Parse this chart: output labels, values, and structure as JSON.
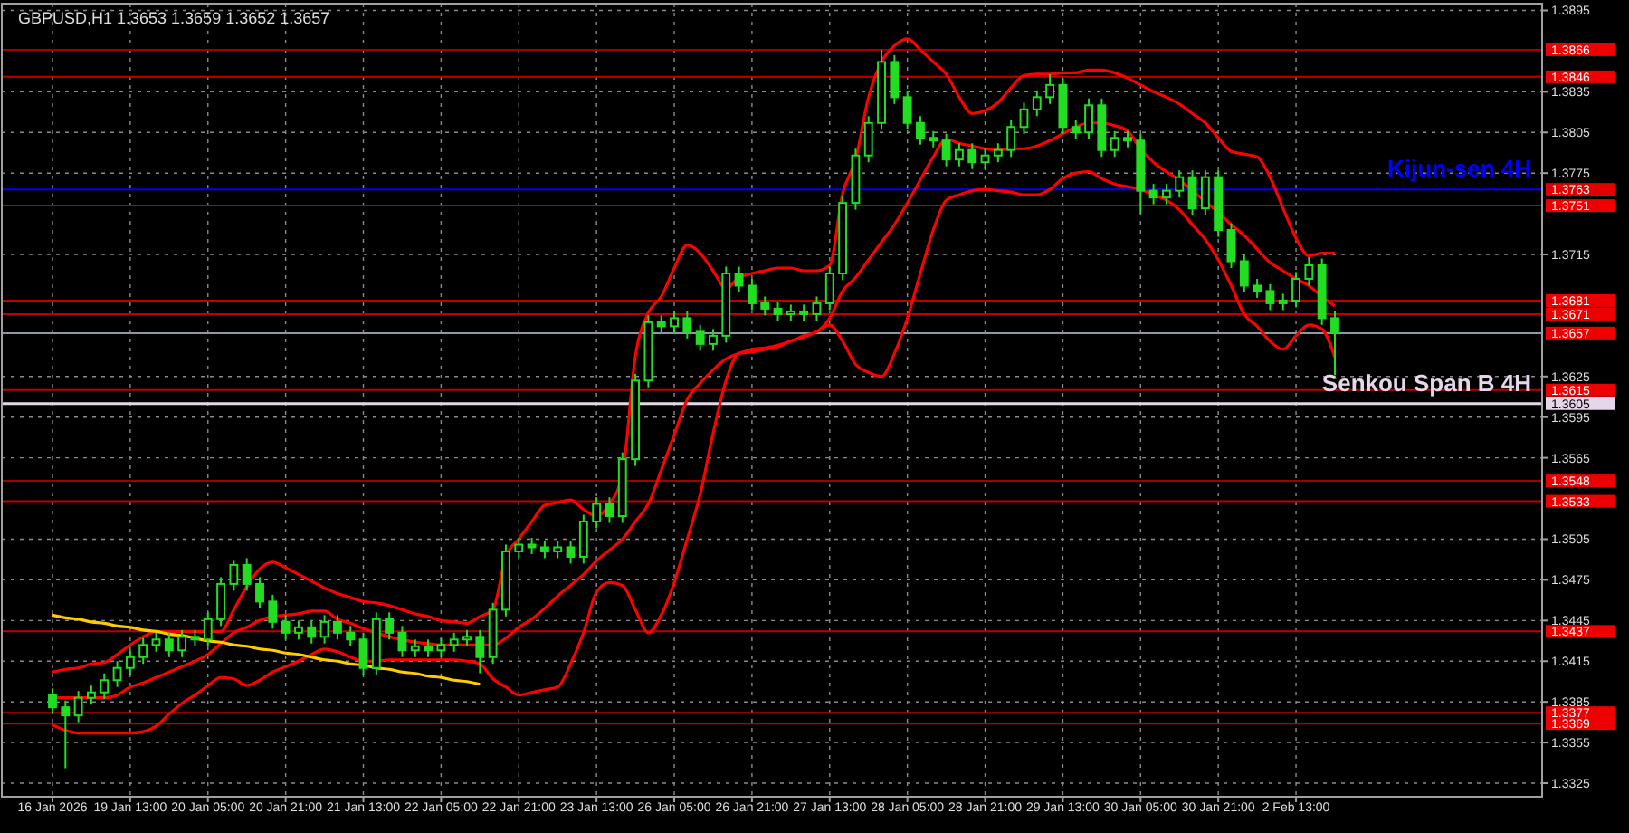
{
  "chart_data": {
    "type": "candlestick",
    "title": "GBPUSD,H1  1.3653 1.3659 1.3652 1.3657",
    "categories": [
      "16 Jan 2026",
      null,
      null,
      null,
      null,
      null,
      "19 Jan 13:00",
      null,
      null,
      null,
      null,
      null,
      "20 Jan 05:00",
      null,
      null,
      null,
      null,
      null,
      "20 Jan 21:00",
      null,
      null,
      null,
      null,
      null,
      "21 Jan 13:00",
      null,
      null,
      null,
      null,
      null,
      "22 Jan 05:00",
      null,
      null,
      null,
      null,
      null,
      "22 Jan 21:00",
      null,
      null,
      null,
      null,
      null,
      "23 Jan 13:00",
      null,
      null,
      null,
      null,
      null,
      "26 Jan 05:00",
      null,
      null,
      null,
      null,
      null,
      "26 Jan 21:00",
      null,
      null,
      null,
      null,
      null,
      "27 Jan 13:00",
      null,
      null,
      null,
      null,
      null,
      "28 Jan 05:00",
      null,
      null,
      null,
      null,
      null,
      "28 Jan 21:00",
      null,
      null,
      null,
      null,
      null,
      "29 Jan 13:00",
      null,
      null,
      null,
      null,
      null,
      "30 Jan 05:00",
      null,
      null,
      null,
      null,
      null,
      "30 Jan 21:00",
      null,
      null,
      null,
      null,
      null,
      "2 Feb 13:00",
      null,
      null,
      null
    ],
    "series": [
      {
        "type": "candlestick",
        "color": "#22dd22",
        "ohlc": [
          [
            1.339,
            1.3395,
            1.3376,
            1.3381
          ],
          [
            1.3381,
            1.3386,
            1.3336,
            1.3375
          ],
          [
            1.3375,
            1.3393,
            1.337,
            1.3388
          ],
          [
            1.3388,
            1.3397,
            1.3383,
            1.3392
          ],
          [
            1.3392,
            1.3406,
            1.3387,
            1.3401
          ],
          [
            1.3401,
            1.3415,
            1.3396,
            1.341
          ],
          [
            1.341,
            1.3423,
            1.3405,
            1.3418
          ],
          [
            1.3418,
            1.3432,
            1.3413,
            1.3427
          ],
          [
            1.3427,
            1.3436,
            1.3422,
            1.3431
          ],
          [
            1.3431,
            1.3436,
            1.3418,
            1.3423
          ],
          [
            1.3423,
            1.3438,
            1.3418,
            1.3433
          ],
          [
            1.3433,
            1.3438,
            1.3426,
            1.3431
          ],
          [
            1.3431,
            1.3451,
            1.3426,
            1.3446
          ],
          [
            1.3446,
            1.3477,
            1.3441,
            1.3472
          ],
          [
            1.3472,
            1.3489,
            1.3467,
            1.3486
          ],
          [
            1.3486,
            1.3491,
            1.3467,
            1.3472
          ],
          [
            1.3472,
            1.3477,
            1.3454,
            1.3459
          ],
          [
            1.3459,
            1.3464,
            1.3439,
            1.3444
          ],
          [
            1.3444,
            1.3449,
            1.3431,
            1.3436
          ],
          [
            1.3436,
            1.3445,
            1.3431,
            1.344
          ],
          [
            1.344,
            1.3445,
            1.3428,
            1.3433
          ],
          [
            1.3433,
            1.3449,
            1.3428,
            1.3444
          ],
          [
            1.3444,
            1.3449,
            1.3431,
            1.3436
          ],
          [
            1.3436,
            1.3441,
            1.3426,
            1.3431
          ],
          [
            1.3431,
            1.3436,
            1.3405,
            1.341
          ],
          [
            1.341,
            1.3451,
            1.3405,
            1.3446
          ],
          [
            1.3446,
            1.3451,
            1.3431,
            1.3436
          ],
          [
            1.3436,
            1.3441,
            1.3418,
            1.3423
          ],
          [
            1.3423,
            1.3431,
            1.3418,
            1.3426
          ],
          [
            1.3426,
            1.3431,
            1.3418,
            1.3423
          ],
          [
            1.3423,
            1.3432,
            1.3418,
            1.3427
          ],
          [
            1.3427,
            1.3436,
            1.3422,
            1.3431
          ],
          [
            1.3431,
            1.3438,
            1.3426,
            1.3433
          ],
          [
            1.3433,
            1.3438,
            1.3406,
            1.3418
          ],
          [
            1.3418,
            1.3458,
            1.3413,
            1.3453
          ],
          [
            1.3453,
            1.3501,
            1.3448,
            1.3496
          ],
          [
            1.3496,
            1.3506,
            1.3491,
            1.3501
          ],
          [
            1.3501,
            1.3506,
            1.3494,
            1.3499
          ],
          [
            1.3499,
            1.3504,
            1.3491,
            1.3496
          ],
          [
            1.3496,
            1.3504,
            1.3491,
            1.3499
          ],
          [
            1.3499,
            1.3504,
            1.3487,
            1.3492
          ],
          [
            1.3492,
            1.3523,
            1.3487,
            1.3518
          ],
          [
            1.3518,
            1.3536,
            1.3513,
            1.3531
          ],
          [
            1.3531,
            1.3536,
            1.3517,
            1.3522
          ],
          [
            1.3522,
            1.3569,
            1.3517,
            1.3564
          ],
          [
            1.3564,
            1.3627,
            1.3559,
            1.3622
          ],
          [
            1.3622,
            1.367,
            1.3617,
            1.3665
          ],
          [
            1.3665,
            1.367,
            1.3657,
            1.3662
          ],
          [
            1.3662,
            1.3673,
            1.3657,
            1.3668
          ],
          [
            1.3668,
            1.3673,
            1.3653,
            1.3658
          ],
          [
            1.3658,
            1.3663,
            1.3644,
            1.3649
          ],
          [
            1.3649,
            1.366,
            1.3644,
            1.3655
          ],
          [
            1.3655,
            1.3706,
            1.365,
            1.3701
          ],
          [
            1.3701,
            1.3706,
            1.3687,
            1.3692
          ],
          [
            1.3692,
            1.3697,
            1.3674,
            1.3679
          ],
          [
            1.3679,
            1.3684,
            1.367,
            1.3675
          ],
          [
            1.3675,
            1.368,
            1.3666,
            1.3671
          ],
          [
            1.3671,
            1.3678,
            1.3666,
            1.3673
          ],
          [
            1.3673,
            1.3678,
            1.3666,
            1.3671
          ],
          [
            1.3671,
            1.3684,
            1.3666,
            1.3679
          ],
          [
            1.3679,
            1.3706,
            1.3674,
            1.3701
          ],
          [
            1.3701,
            1.3758,
            1.3696,
            1.3753
          ],
          [
            1.3753,
            1.3793,
            1.3748,
            1.3788
          ],
          [
            1.3788,
            1.3817,
            1.3783,
            1.3812
          ],
          [
            1.3812,
            1.3866,
            1.3807,
            1.3857
          ],
          [
            1.3857,
            1.3862,
            1.3826,
            1.3831
          ],
          [
            1.3831,
            1.3836,
            1.3807,
            1.3812
          ],
          [
            1.3812,
            1.3817,
            1.3796,
            1.3801
          ],
          [
            1.3801,
            1.3806,
            1.3794,
            1.3799
          ],
          [
            1.3799,
            1.3804,
            1.378,
            1.3785
          ],
          [
            1.3785,
            1.3797,
            1.378,
            1.3792
          ],
          [
            1.3792,
            1.3797,
            1.3778,
            1.3783
          ],
          [
            1.3783,
            1.3793,
            1.3778,
            1.3788
          ],
          [
            1.3788,
            1.3797,
            1.3783,
            1.3792
          ],
          [
            1.3792,
            1.3814,
            1.3787,
            1.3809
          ],
          [
            1.3809,
            1.3827,
            1.3804,
            1.3822
          ],
          [
            1.3822,
            1.3836,
            1.3817,
            1.3831
          ],
          [
            1.3831,
            1.3848,
            1.3826,
            1.384
          ],
          [
            1.384,
            1.3845,
            1.3804,
            1.3809
          ],
          [
            1.3809,
            1.3814,
            1.38,
            1.3805
          ],
          [
            1.3805,
            1.383,
            1.38,
            1.3825
          ],
          [
            1.3825,
            1.383,
            1.3787,
            1.3792
          ],
          [
            1.3792,
            1.3806,
            1.3787,
            1.3801
          ],
          [
            1.3801,
            1.3806,
            1.3794,
            1.3799
          ],
          [
            1.3799,
            1.3804,
            1.3745,
            1.3762
          ],
          [
            1.3762,
            1.3767,
            1.3752,
            1.3757
          ],
          [
            1.3757,
            1.3767,
            1.3752,
            1.3762
          ],
          [
            1.3762,
            1.3777,
            1.3757,
            1.3772
          ],
          [
            1.3772,
            1.3777,
            1.3744,
            1.3749
          ],
          [
            1.3749,
            1.3777,
            1.3744,
            1.3772
          ],
          [
            1.3772,
            1.3777,
            1.3728,
            1.3733
          ],
          [
            1.3733,
            1.3738,
            1.3705,
            1.371
          ],
          [
            1.371,
            1.3715,
            1.3687,
            1.3692
          ],
          [
            1.3692,
            1.3697,
            1.3683,
            1.3688
          ],
          [
            1.3688,
            1.3693,
            1.3674,
            1.3679
          ],
          [
            1.3679,
            1.3686,
            1.3674,
            1.3681
          ],
          [
            1.3681,
            1.3702,
            1.3676,
            1.3697
          ],
          [
            1.3697,
            1.3713,
            1.3692,
            1.3707
          ],
          [
            1.3707,
            1.3712,
            1.3663,
            1.3668
          ],
          [
            1.3668,
            1.3673,
            1.3626,
            1.3657
          ]
        ]
      },
      {
        "type": "line",
        "color": "#ff0000",
        "values": [
          1.3407,
          1.3409,
          1.341,
          1.3413,
          1.3414,
          1.342,
          1.3427,
          1.3433,
          1.3437,
          1.3437,
          1.3437,
          1.3437,
          1.3437,
          1.3437,
          1.3453,
          1.347,
          1.3483,
          1.3488,
          1.3484,
          1.3479,
          1.3474,
          1.3469,
          1.3465,
          1.3462,
          1.3459,
          1.3458,
          1.3456,
          1.3453,
          1.345,
          1.3448,
          1.3445,
          1.3444,
          1.3443,
          1.3448,
          1.3453,
          1.3492,
          1.3505,
          1.3518,
          1.353,
          1.3532,
          1.3534,
          1.3527,
          1.3522,
          1.3531,
          1.3553,
          1.364,
          1.3672,
          1.3684,
          1.3705,
          1.3722,
          1.3716,
          1.3703,
          1.369,
          1.3698,
          1.3701,
          1.3703,
          1.3705,
          1.3705,
          1.3703,
          1.3703,
          1.3707,
          1.376,
          1.3785,
          1.3831,
          1.3857,
          1.3869,
          1.3874,
          1.3866,
          1.3857,
          1.3848,
          1.3831,
          1.3819,
          1.3821,
          1.3827,
          1.3838,
          1.3847,
          1.3848,
          1.3848,
          1.3849,
          1.3849,
          1.3851,
          1.3851,
          1.3849,
          1.3845,
          1.384,
          1.3835,
          1.3831,
          1.3826,
          1.3819,
          1.3812,
          1.3801,
          1.3791,
          1.3789,
          1.3787,
          1.3772,
          1.3749,
          1.3727,
          1.3714,
          1.3716,
          1.3716
        ]
      },
      {
        "type": "line",
        "color": "#ff0000",
        "values": [
          1.3388,
          1.3388,
          1.3388,
          1.3388,
          1.3388,
          1.339,
          1.3396,
          1.3399,
          1.3403,
          1.3407,
          1.3411,
          1.3415,
          1.342,
          1.3428,
          1.3436,
          1.344,
          1.3445,
          1.3448,
          1.3449,
          1.345,
          1.3452,
          1.3452,
          1.3446,
          1.3443,
          1.3439,
          1.3436,
          1.3433,
          1.3431,
          1.3429,
          1.3428,
          1.3427,
          1.3427,
          1.3427,
          1.3427,
          1.3427,
          1.3432,
          1.344,
          1.3446,
          1.3454,
          1.3463,
          1.3471,
          1.3479,
          1.3489,
          1.3497,
          1.3505,
          1.3518,
          1.3531,
          1.3556,
          1.3582,
          1.3608,
          1.362,
          1.363,
          1.3638,
          1.3642,
          1.3645,
          1.3646,
          1.3648,
          1.3651,
          1.3655,
          1.3658,
          1.3668,
          1.3688,
          1.3698,
          1.3711,
          1.3724,
          1.3737,
          1.3753,
          1.377,
          1.3787,
          1.38,
          1.3797,
          1.3795,
          1.3793,
          1.3792,
          1.3793,
          1.3793,
          1.3795,
          1.3799,
          1.3804,
          1.3809,
          1.3812,
          1.3812,
          1.381,
          1.3806,
          1.3793,
          1.3783,
          1.3776,
          1.377,
          1.3762,
          1.3754,
          1.3746,
          1.3737,
          1.3729,
          1.3719,
          1.3709,
          1.3703,
          1.3697,
          1.3692,
          1.3684,
          1.3677
        ]
      },
      {
        "type": "line",
        "color": "#ff0000",
        "values": [
          1.3368,
          1.3364,
          1.3362,
          1.3362,
          1.3362,
          1.3362,
          1.3362,
          1.3363,
          1.3367,
          1.3376,
          1.3384,
          1.339,
          1.3397,
          1.3403,
          1.3402,
          1.3397,
          1.3401,
          1.3407,
          1.3411,
          1.3415,
          1.342,
          1.3424,
          1.3422,
          1.3418,
          1.3415,
          1.3415,
          1.3416,
          1.3416,
          1.3416,
          1.3416,
          1.3416,
          1.3416,
          1.3415,
          1.3413,
          1.3402,
          1.3396,
          1.339,
          1.3392,
          1.3394,
          1.3396,
          1.3413,
          1.3436,
          1.3466,
          1.3473,
          1.3471,
          1.3453,
          1.3436,
          1.3449,
          1.3473,
          1.3505,
          1.3538,
          1.3583,
          1.3622,
          1.3642,
          1.3643,
          1.3645,
          1.3647,
          1.3651,
          1.3654,
          1.3658,
          1.3663,
          1.3651,
          1.3634,
          1.3628,
          1.3625,
          1.3642,
          1.3668,
          1.3701,
          1.3733,
          1.3755,
          1.3759,
          1.3762,
          1.3763,
          1.3762,
          1.3761,
          1.3759,
          1.3759,
          1.3763,
          1.3771,
          1.3775,
          1.3776,
          1.3771,
          1.3767,
          1.3765,
          1.3763,
          1.3759,
          1.3755,
          1.3748,
          1.3737,
          1.3726,
          1.3711,
          1.3692,
          1.3671,
          1.3662,
          1.3651,
          1.3645,
          1.3655,
          1.3663,
          1.366,
          1.3639
        ]
      },
      {
        "type": "line",
        "color": "#ffcc00",
        "values": [
          1.3449,
          1.3447,
          1.3446,
          1.3444,
          1.3443,
          1.3441,
          1.344,
          1.3438,
          1.3437,
          1.3435,
          1.3434,
          1.3432,
          1.343,
          1.3429,
          1.3427,
          1.3426,
          1.3424,
          1.3423,
          1.3421,
          1.342,
          1.3418,
          1.3416,
          1.3415,
          1.3413,
          1.3412,
          1.341,
          1.3409,
          1.3407,
          1.3406,
          1.3404,
          1.3403,
          1.3401,
          1.34,
          1.3398,
          null,
          null,
          null,
          null,
          null,
          null,
          null,
          null,
          null,
          null,
          null,
          null,
          null,
          null,
          null,
          null,
          null,
          null,
          null,
          null,
          null,
          null,
          null,
          null,
          null,
          null,
          null,
          null,
          null,
          null,
          null,
          null,
          null,
          null,
          null,
          null,
          null,
          null,
          null,
          null,
          null,
          null,
          null,
          null,
          null,
          null,
          null,
          null,
          null,
          null,
          null,
          null,
          null,
          null,
          null,
          null,
          null,
          null,
          null,
          null,
          null,
          null,
          null,
          null,
          null,
          null
        ]
      }
    ],
    "ylim": [
      1.3315,
      1.39
    ],
    "yticks": [
      1.3895,
      1.3835,
      1.3805,
      1.3775,
      1.3715,
      1.3625,
      1.3595,
      1.3565,
      1.3505,
      1.3475,
      1.3445,
      1.3415,
      1.3385,
      1.3355,
      1.3325
    ],
    "annotations": [
      {
        "text": "Kijun-sen 4H",
        "y": 1.3763
      },
      {
        "text": "Senkou Span B 4H",
        "y": 1.3605
      }
    ],
    "grid": true,
    "ref_lines": [
      {
        "axis": "y",
        "value": 1.3866,
        "color": "#a00000",
        "label": "1.3866"
      },
      {
        "axis": "y",
        "value": 1.3846,
        "color": "#c00000",
        "label": "1.3846"
      },
      {
        "axis": "y",
        "value": 1.3763,
        "color": "#0000ff",
        "label": "1.3763"
      },
      {
        "axis": "y",
        "value": 1.3751,
        "color": "#c00000",
        "label": "1.3751"
      },
      {
        "axis": "y",
        "value": 1.3681,
        "color": "#c00000",
        "label": "1.3681"
      },
      {
        "axis": "y",
        "value": 1.3671,
        "color": "#c00000",
        "label": "1.3671"
      },
      {
        "axis": "y",
        "value": 1.3657,
        "color": "#8a98a8",
        "label": "1.3657"
      },
      {
        "axis": "y",
        "value": 1.3615,
        "color": "#c00000",
        "label": "1.3615"
      },
      {
        "axis": "y",
        "value": 1.3605,
        "color": "#e6d6ea",
        "label": "1.3605"
      },
      {
        "axis": "y",
        "value": 1.3548,
        "color": "#a00000",
        "label": "1.3548"
      },
      {
        "axis": "y",
        "value": 1.3533,
        "color": "#c00000",
        "label": "1.3533"
      },
      {
        "axis": "y",
        "value": 1.3437,
        "color": "#c00000",
        "label": "1.3437"
      },
      {
        "axis": "y",
        "value": 1.3377,
        "color": "#c00000",
        "label": "1.3377"
      },
      {
        "axis": "y",
        "value": 1.3369,
        "color": "#c00000",
        "label": "1.3369"
      }
    ]
  }
}
